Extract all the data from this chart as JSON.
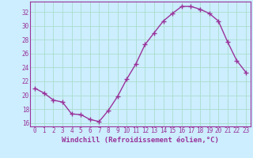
{
  "x": [
    0,
    1,
    2,
    3,
    4,
    5,
    6,
    7,
    8,
    9,
    10,
    11,
    12,
    13,
    14,
    15,
    16,
    17,
    18,
    19,
    20,
    21,
    22,
    23
  ],
  "y": [
    21.0,
    20.3,
    19.3,
    19.0,
    17.3,
    17.2,
    16.5,
    16.2,
    17.8,
    19.8,
    22.3,
    24.5,
    27.3,
    29.0,
    30.7,
    31.8,
    32.8,
    32.8,
    32.4,
    31.8,
    30.7,
    27.7,
    25.0,
    23.3
  ],
  "line_color": "#993399",
  "marker": "+",
  "marker_size": 4,
  "bg_color": "#cceeff",
  "grid_color": "#aaddcc",
  "xlabel": "Windchill (Refroidissement éolien,°C)",
  "xlim": [
    -0.5,
    23.5
  ],
  "ylim": [
    15.5,
    33.5
  ],
  "yticks": [
    16,
    18,
    20,
    22,
    24,
    26,
    28,
    30,
    32
  ],
  "xticks": [
    0,
    1,
    2,
    3,
    4,
    5,
    6,
    7,
    8,
    9,
    10,
    11,
    12,
    13,
    14,
    15,
    16,
    17,
    18,
    19,
    20,
    21,
    22,
    23
  ],
  "tick_fontsize": 5.5,
  "xlabel_fontsize": 6.5,
  "line_width": 1.0
}
